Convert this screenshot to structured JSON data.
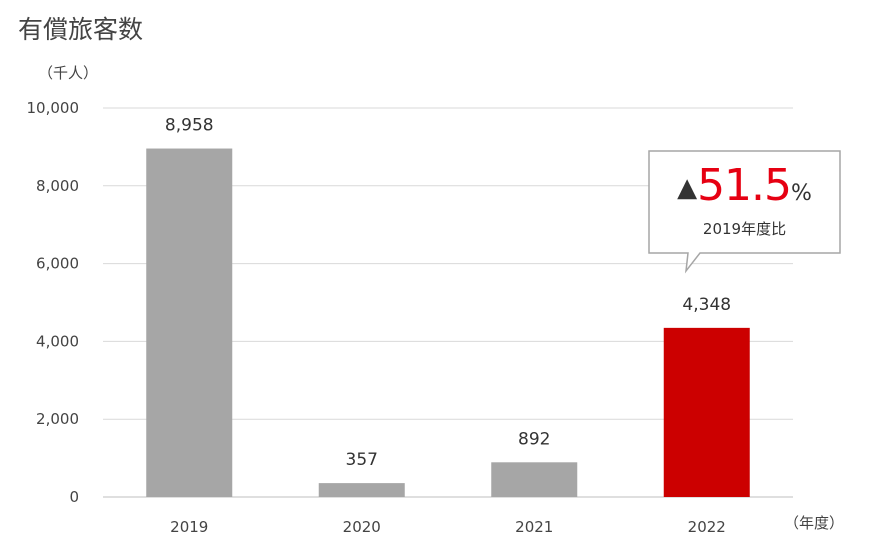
{
  "chart_data": {
    "type": "bar",
    "title": "有償旅客数",
    "ylabel": "（千人）",
    "xlabel": "（年度）",
    "categories": [
      "2019",
      "2020",
      "2021",
      "2022"
    ],
    "values": [
      8958,
      357,
      892,
      4348
    ],
    "value_labels": [
      "8,958",
      "357",
      "892",
      "4,348"
    ],
    "yticks": [
      "0",
      "2,000",
      "4,000",
      "6,000",
      "8,000",
      "10,000"
    ],
    "ytick_values": [
      0,
      2000,
      4000,
      6000,
      8000,
      10000
    ],
    "ylim": [
      0,
      10000
    ],
    "grid": true,
    "bar_colors": [
      "#a6a6a6",
      "#a6a6a6",
      "#a6a6a6",
      "#cc0000"
    ],
    "annotation": {
      "marker": "▲",
      "value": "51.5",
      "unit": "%",
      "note": "2019年度比"
    }
  }
}
